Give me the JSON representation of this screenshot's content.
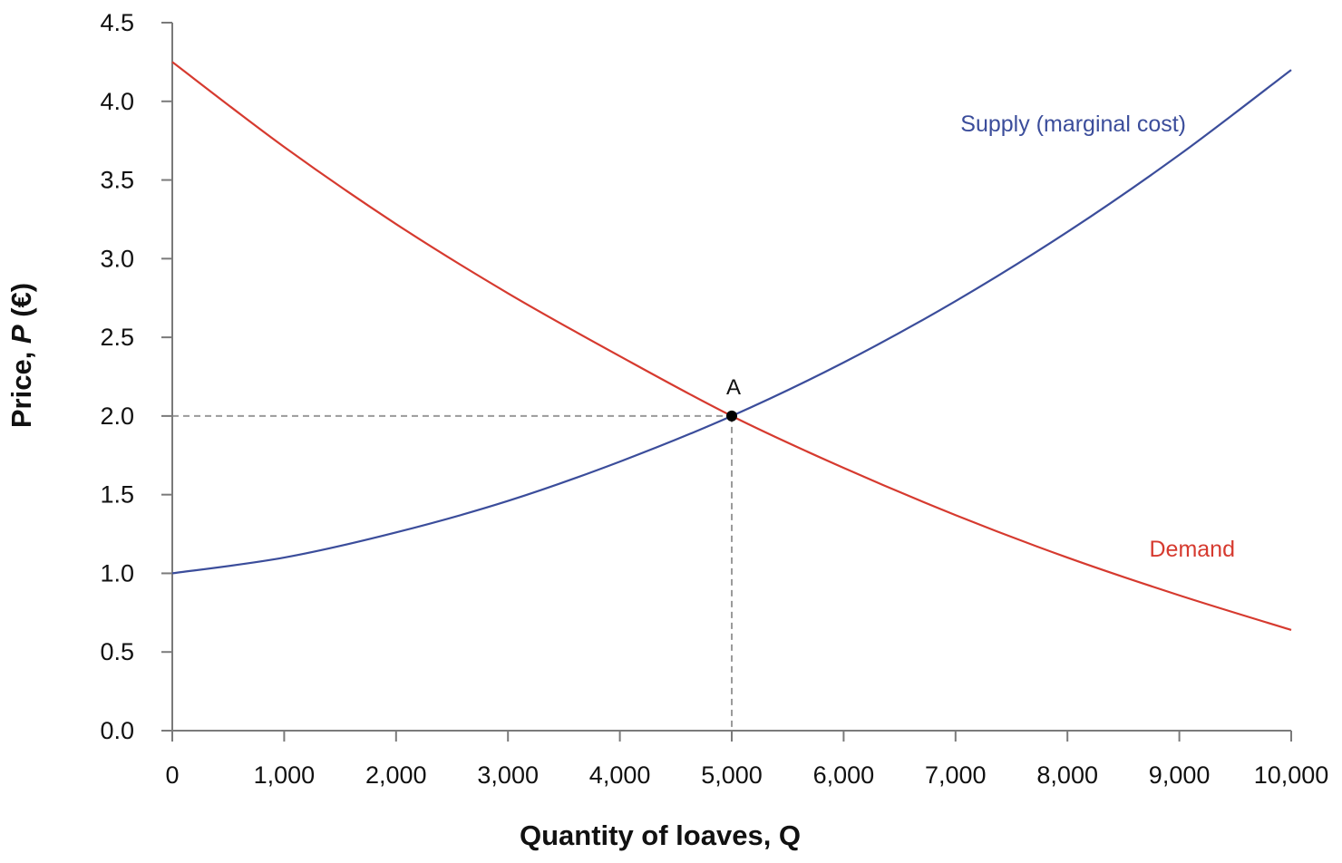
{
  "chart_data": {
    "type": "line",
    "xlabel": "Quantity of loaves, Q",
    "ylabel_prefix": "Price, ",
    "ylabel_var": "P",
    "ylabel_suffix": " (€)",
    "xlim": [
      0,
      10000
    ],
    "ylim": [
      0,
      4.5
    ],
    "x_ticks": [
      0,
      1000,
      2000,
      3000,
      4000,
      5000,
      6000,
      7000,
      8000,
      9000,
      10000
    ],
    "x_tick_labels": [
      "0",
      "1,000",
      "2,000",
      "3,000",
      "4,000",
      "5,000",
      "6,000",
      "7,000",
      "8,000",
      "9,000",
      "10,000"
    ],
    "y_ticks": [
      0,
      0.5,
      1,
      1.5,
      2,
      2.5,
      3,
      3.5,
      4,
      4.5
    ],
    "y_tick_labels": [
      "0.0",
      "0.5",
      "1.0",
      "1.5",
      "2.0",
      "2.5",
      "3.0",
      "3.5",
      "4.0",
      "4.5"
    ],
    "grid": false,
    "series": [
      {
        "name": "Supply (marginal cost)",
        "color": "#3b4d9b",
        "x": [
          0,
          1000,
          2000,
          3000,
          4000,
          5000,
          6000,
          7000,
          8000,
          9000,
          10000
        ],
        "y": [
          1.0,
          1.1,
          1.26,
          1.46,
          1.71,
          2.0,
          2.34,
          2.73,
          3.17,
          3.66,
          4.2
        ]
      },
      {
        "name": "Demand",
        "color": "#d63a2f",
        "x": [
          0,
          1000,
          2000,
          3000,
          4000,
          5000,
          6000,
          7000,
          8000,
          9000,
          10000
        ],
        "y": [
          4.25,
          3.71,
          3.22,
          2.78,
          2.38,
          2.0,
          1.67,
          1.37,
          1.1,
          0.86,
          0.64
        ]
      }
    ],
    "annotations": [
      {
        "label": "A",
        "x": 5000,
        "y": 2.0
      }
    ]
  }
}
